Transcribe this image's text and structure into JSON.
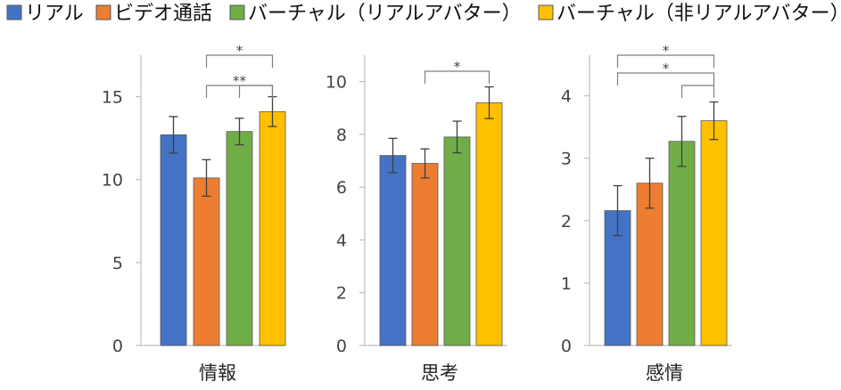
{
  "chart_data": {
    "type": "bar",
    "legend": {
      "placement": "top",
      "entries": [
        {
          "label": "リアル",
          "color": "#4472C4"
        },
        {
          "label": "ビデオ通話",
          "color": "#ED7D31"
        },
        {
          "label": "バーチャル（リアルアバター）",
          "color": "#70AD47"
        },
        {
          "label": "バーチャル（非リアルアバター）",
          "color": "#FFC000"
        }
      ]
    },
    "error_bars": true,
    "grid": false,
    "panels": [
      {
        "category": "情報",
        "ylim": [
          0,
          17.5
        ],
        "yticks": [
          0,
          5,
          10,
          15
        ],
        "values": [
          12.7,
          10.1,
          12.9,
          14.1
        ],
        "errors": [
          1.1,
          1.1,
          0.8,
          0.9
        ],
        "significance": [
          {
            "from": 1,
            "to": 3,
            "label": "*"
          },
          {
            "from": 1,
            "to": 3,
            "label": "**"
          },
          {
            "from": 2,
            "to": 3,
            "label": ""
          }
        ]
      },
      {
        "category": "思考",
        "ylim": [
          0,
          11
        ],
        "yticks": [
          0,
          2,
          4,
          6,
          8,
          10
        ],
        "values": [
          7.2,
          6.9,
          7.9,
          9.2
        ],
        "errors": [
          0.65,
          0.55,
          0.6,
          0.6
        ],
        "significance": [
          {
            "from": 1,
            "to": 3,
            "label": "*"
          }
        ]
      },
      {
        "category": "感情",
        "ylim": [
          0,
          4.65
        ],
        "yticks": [
          0,
          1,
          2,
          3,
          4
        ],
        "values": [
          2.16,
          2.6,
          3.27,
          3.6
        ],
        "errors": [
          0.4,
          0.4,
          0.4,
          0.3
        ],
        "significance": [
          {
            "from": 0,
            "to": 3,
            "label": "*"
          },
          {
            "from": 0,
            "to": 3,
            "label": "*"
          },
          {
            "from": 2,
            "to": 3,
            "label": ""
          }
        ]
      }
    ]
  }
}
